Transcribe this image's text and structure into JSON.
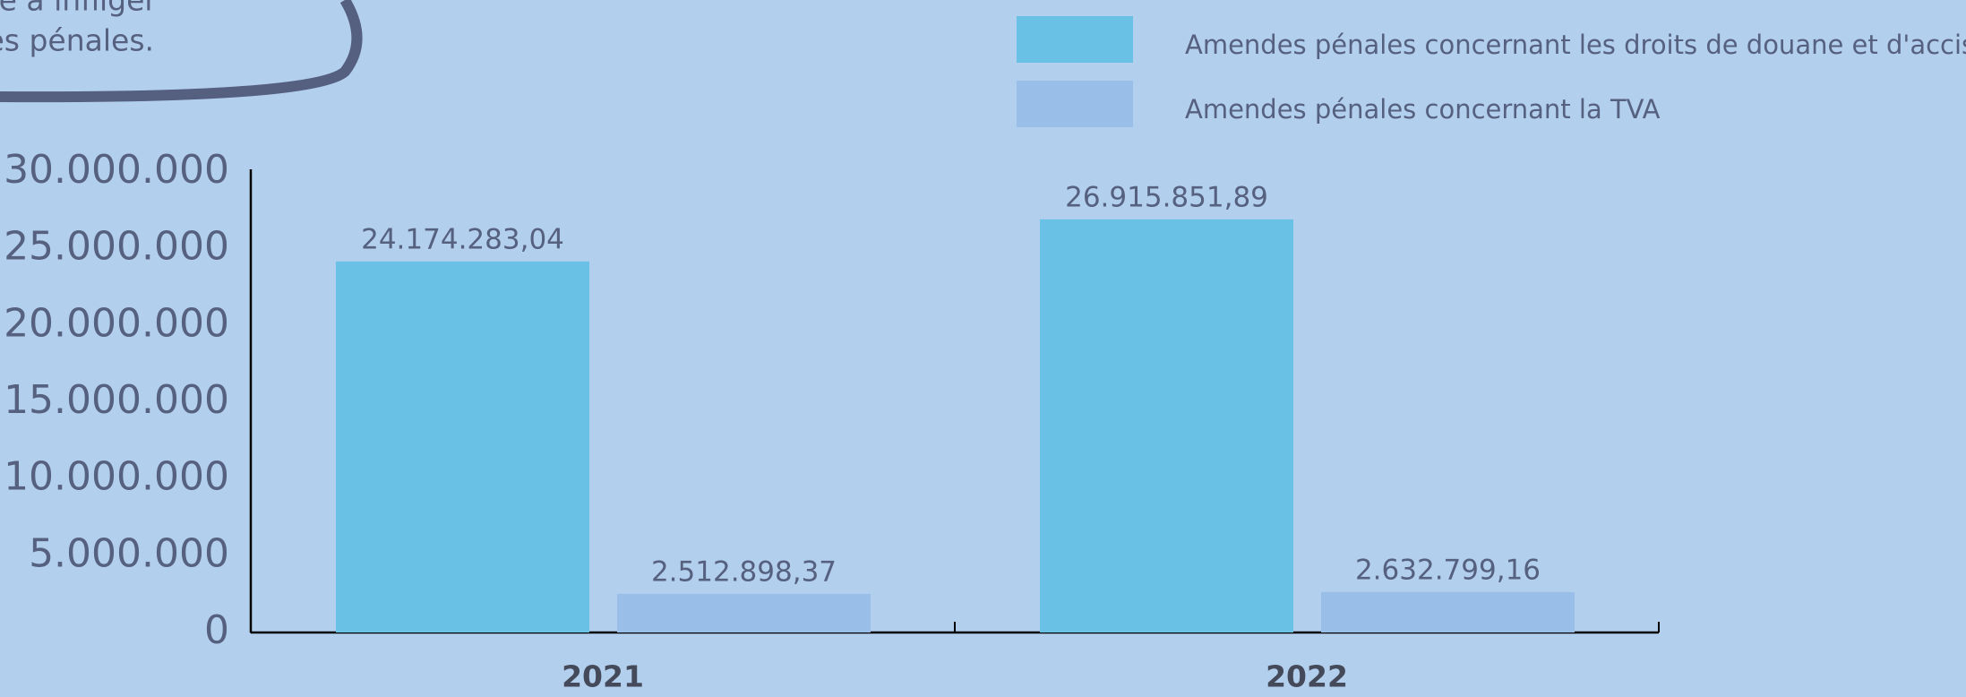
{
  "chart_data": {
    "type": "bar",
    "annotation": [
      "enée à infliger",
      "es pénales."
    ],
    "categories": [
      "2021",
      "2022"
    ],
    "series": [
      {
        "name": "Amendes pénales concernant les droits de douane et d'accise",
        "color": "#69c2e5",
        "values": [
          24174283.04,
          26915851.89
        ],
        "value_labels": [
          "24.174.283,04",
          "26.915.851,89"
        ]
      },
      {
        "name": "Amendes pénales concernant la TVA",
        "color": "#99bfe8",
        "values": [
          2512898.37,
          2632799.16
        ],
        "value_labels": [
          "2.512.898,37",
          "2.632.799,16"
        ]
      }
    ],
    "ylim": [
      0,
      30000000
    ],
    "yticks": [
      0,
      {
        "value": 5000000,
        "label": "5.000.000"
      },
      {
        "value": 10000000,
        "label": "10.000.000"
      },
      {
        "value": 15000000,
        "label": "15.000.000"
      },
      {
        "value": 20000000,
        "label": "20.000.000"
      },
      {
        "value": 25000000,
        "label": "25.000.000"
      },
      {
        "value": 30000000,
        "label": "30.000.000"
      }
    ],
    "grid": false,
    "legend": "top right"
  }
}
